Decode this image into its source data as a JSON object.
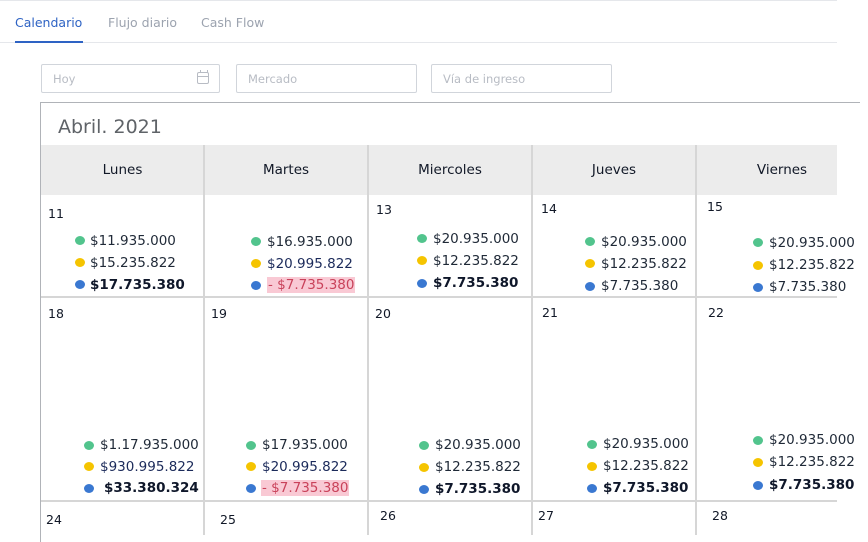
{
  "tabs": [
    "Calendario",
    "Flujo diario",
    "Cash Flow"
  ],
  "filters": {
    "date_placeholder": "Hoy",
    "market_placeholder": "Mercado",
    "income_placeholder": "Vía de ingreso"
  },
  "calendar": {
    "title": "Abril. 2021",
    "weekdays": [
      "Lunes",
      "Martes",
      "Miercoles",
      "Jueves",
      "Viernes"
    ],
    "weeks": [
      {
        "days": [
          {
            "num": "11",
            "green": "$11.935.000",
            "yellow": "$15.235.822",
            "blue": "$17.735.380"
          },
          {
            "num": "",
            "green": "$16.935.000",
            "yellow": "$20.995.822",
            "blue": "- $7.735.380"
          },
          {
            "num": "13",
            "green": "$20.935.000",
            "yellow": "$12.235.822",
            "blue": "$7.735.380"
          },
          {
            "num": "14",
            "green": "$20.935.000",
            "yellow": "$12.235.822",
            "blue": "$7.735.380"
          },
          {
            "num": "15",
            "green": "$20.935.000",
            "yellow": "$12.235.822",
            "blue": "$7.735.380"
          }
        ]
      },
      {
        "days": [
          {
            "num": "18",
            "green": "$1.17.935.000",
            "yellow": "$930.995.822",
            "blue": "$33.380.324"
          },
          {
            "num": "19",
            "green": "$17.935.000",
            "yellow": "$20.995.822",
            "blue": "- $7.735.380"
          },
          {
            "num": "20",
            "green": "$20.935.000",
            "yellow": "$12.235.822",
            "blue": "$7.735.380"
          },
          {
            "num": "21",
            "green": "$20.935.000",
            "yellow": "$12.235.822",
            "blue": "$7.735.380"
          },
          {
            "num": "22",
            "green": "$20.935.000",
            "yellow": "$12.235.822",
            "blue": "$7.735.380"
          }
        ]
      },
      {
        "days": [
          {
            "num": "24"
          },
          {
            "num": "25"
          },
          {
            "num": "26"
          },
          {
            "num": "27"
          },
          {
            "num": "28"
          }
        ]
      }
    ]
  },
  "colors": {
    "accent": "#2e63c4",
    "income_green": "#52c48d",
    "income_yellow": "#f5c400",
    "income_blue": "#3a78d1",
    "negative_bg": "#f9c9d4",
    "negative_text": "#c9425a"
  }
}
